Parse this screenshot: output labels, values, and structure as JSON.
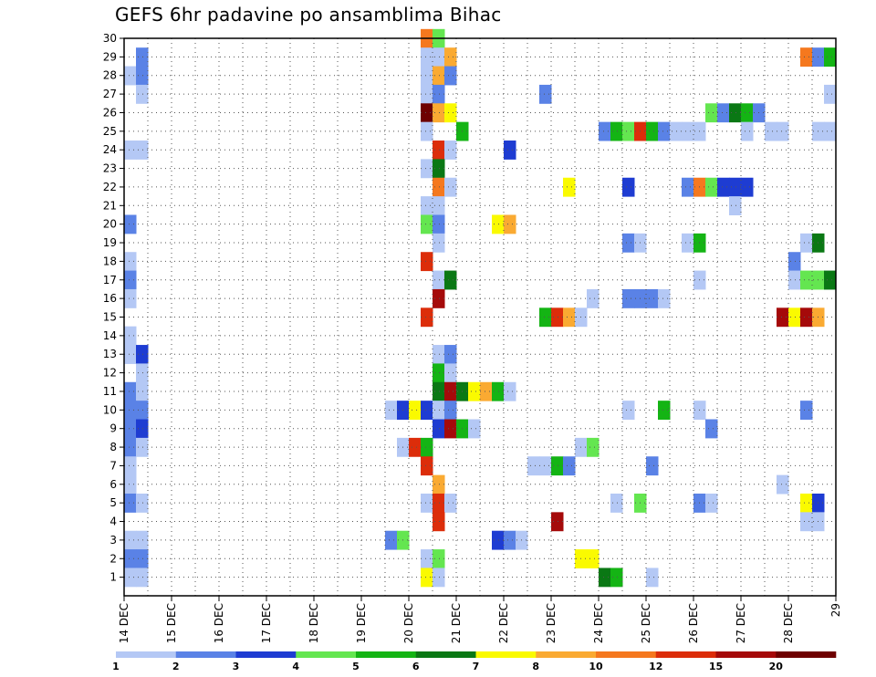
{
  "chart_data": {
    "type": "heatmap",
    "title": "GEFS 6hr padavine po ansamblima Bihac",
    "xlabel": "",
    "ylabel": "",
    "x_tick_labels": [
      "14 DEC",
      "15 DEC",
      "16 DEC",
      "17 DEC",
      "18 DEC",
      "19 DEC",
      "20 DEC",
      "21 DEC",
      "22 DEC",
      "23 DEC",
      "24 DEC",
      "25 DEC",
      "26 DEC",
      "27 DEC",
      "28 DEC",
      "29"
    ],
    "x_range_days": [
      14,
      29
    ],
    "y_tick_labels": [
      "1",
      "2",
      "3",
      "4",
      "5",
      "6",
      "7",
      "8",
      "9",
      "10",
      "11",
      "12",
      "13",
      "14",
      "15",
      "16",
      "17",
      "18",
      "19",
      "20",
      "21",
      "22",
      "23",
      "24",
      "25",
      "26",
      "27",
      "28",
      "29",
      "30"
    ],
    "y_range": [
      0,
      30
    ],
    "grid": true,
    "legend": "bottom",
    "colorbar": {
      "colors": [
        "#b4c8f5",
        "#5a82e6",
        "#1e3cd2",
        "#64e650",
        "#14b414",
        "#0a7814",
        "#fafa00",
        "#faaa32",
        "#f5781e",
        "#dc2d0a",
        "#a50a0a",
        "#6e0000"
      ],
      "labels": [
        "1",
        "2",
        "3",
        "4",
        "5",
        "6",
        "7",
        "8",
        "10",
        "12",
        "15",
        "20"
      ]
    },
    "cells": [
      {
        "m": 30,
        "d": 20.25,
        "c": 8
      },
      {
        "m": 30,
        "d": 20.5,
        "c": 3
      },
      {
        "m": 29,
        "d": 14.25,
        "c": 1
      },
      {
        "m": 29,
        "d": 20.25,
        "c": 0
      },
      {
        "m": 29,
        "d": 20.5,
        "c": 0
      },
      {
        "m": 29,
        "d": 20.75,
        "c": 7
      },
      {
        "m": 29,
        "d": 28.25,
        "c": 8
      },
      {
        "m": 29,
        "d": 28.5,
        "c": 1
      },
      {
        "m": 29,
        "d": 28.75,
        "c": 4
      },
      {
        "m": 28,
        "d": 14,
        "c": 0
      },
      {
        "m": 28,
        "d": 14.25,
        "c": 1
      },
      {
        "m": 28,
        "d": 20.25,
        "c": 0
      },
      {
        "m": 28,
        "d": 20.5,
        "c": 7
      },
      {
        "m": 28,
        "d": 20.75,
        "c": 1
      },
      {
        "m": 27,
        "d": 14.25,
        "c": 0
      },
      {
        "m": 27,
        "d": 20.25,
        "c": 0
      },
      {
        "m": 27,
        "d": 20.5,
        "c": 1
      },
      {
        "m": 27,
        "d": 22.75,
        "c": 1
      },
      {
        "m": 27,
        "d": 28.75,
        "c": 0
      },
      {
        "m": 26,
        "d": 20.25,
        "c": 11
      },
      {
        "m": 26,
        "d": 20.5,
        "c": 7
      },
      {
        "m": 26,
        "d": 20.75,
        "c": 6
      },
      {
        "m": 26,
        "d": 26.25,
        "c": 3
      },
      {
        "m": 26,
        "d": 26.5,
        "c": 1
      },
      {
        "m": 26,
        "d": 26.75,
        "c": 5
      },
      {
        "m": 26,
        "d": 27,
        "c": 4
      },
      {
        "m": 26,
        "d": 27.25,
        "c": 1
      },
      {
        "m": 25,
        "d": 20.25,
        "c": 0
      },
      {
        "m": 25,
        "d": 21,
        "c": 4
      },
      {
        "m": 25,
        "d": 24,
        "c": 1
      },
      {
        "m": 25,
        "d": 24.25,
        "c": 4
      },
      {
        "m": 25,
        "d": 24.5,
        "c": 3
      },
      {
        "m": 25,
        "d": 24.75,
        "c": 9
      },
      {
        "m": 25,
        "d": 25,
        "c": 4
      },
      {
        "m": 25,
        "d": 25.25,
        "c": 1
      },
      {
        "m": 25,
        "d": 25.5,
        "c": 0
      },
      {
        "m": 25,
        "d": 25.75,
        "c": 0
      },
      {
        "m": 25,
        "d": 26,
        "c": 0
      },
      {
        "m": 25,
        "d": 27,
        "c": 0
      },
      {
        "m": 25,
        "d": 27.5,
        "c": 0
      },
      {
        "m": 25,
        "d": 27.75,
        "c": 0
      },
      {
        "m": 25,
        "d": 28.5,
        "c": 0
      },
      {
        "m": 25,
        "d": 28.75,
        "c": 0
      },
      {
        "m": 24,
        "d": 14,
        "c": 0
      },
      {
        "m": 24,
        "d": 14.25,
        "c": 0
      },
      {
        "m": 24,
        "d": 20.5,
        "c": 9
      },
      {
        "m": 24,
        "d": 20.75,
        "c": 0
      },
      {
        "m": 24,
        "d": 22,
        "c": 2
      },
      {
        "m": 23,
        "d": 20.25,
        "c": 0
      },
      {
        "m": 23,
        "d": 20.5,
        "c": 5
      },
      {
        "m": 22,
        "d": 20.5,
        "c": 8
      },
      {
        "m": 22,
        "d": 20.75,
        "c": 0
      },
      {
        "m": 22,
        "d": 23.25,
        "c": 6
      },
      {
        "m": 22,
        "d": 24.5,
        "c": 2
      },
      {
        "m": 22,
        "d": 25.75,
        "c": 1
      },
      {
        "m": 22,
        "d": 26,
        "c": 8
      },
      {
        "m": 22,
        "d": 26.25,
        "c": 3
      },
      {
        "m": 22,
        "d": 26.5,
        "c": 2
      },
      {
        "m": 22,
        "d": 26.75,
        "c": 2
      },
      {
        "m": 22,
        "d": 27,
        "c": 2
      },
      {
        "m": 21,
        "d": 20.25,
        "c": 0
      },
      {
        "m": 21,
        "d": 20.5,
        "c": 0
      },
      {
        "m": 21,
        "d": 26.75,
        "c": 0
      },
      {
        "m": 20,
        "d": 14,
        "c": 1
      },
      {
        "m": 20,
        "d": 20.25,
        "c": 3
      },
      {
        "m": 20,
        "d": 20.5,
        "c": 1
      },
      {
        "m": 20,
        "d": 21.75,
        "c": 6
      },
      {
        "m": 20,
        "d": 22,
        "c": 7
      },
      {
        "m": 19,
        "d": 20.5,
        "c": 0
      },
      {
        "m": 19,
        "d": 24.5,
        "c": 1
      },
      {
        "m": 19,
        "d": 24.75,
        "c": 0
      },
      {
        "m": 19,
        "d": 25.75,
        "c": 0
      },
      {
        "m": 19,
        "d": 26,
        "c": 4
      },
      {
        "m": 19,
        "d": 28.25,
        "c": 0
      },
      {
        "m": 19,
        "d": 28.5,
        "c": 5
      },
      {
        "m": 18,
        "d": 14,
        "c": 0
      },
      {
        "m": 18,
        "d": 20.25,
        "c": 9
      },
      {
        "m": 18,
        "d": 28,
        "c": 1
      },
      {
        "m": 17,
        "d": 14,
        "c": 1
      },
      {
        "m": 17,
        "d": 20.5,
        "c": 0
      },
      {
        "m": 17,
        "d": 20.75,
        "c": 5
      },
      {
        "m": 17,
        "d": 26,
        "c": 0
      },
      {
        "m": 17,
        "d": 28,
        "c": 0
      },
      {
        "m": 17,
        "d": 28.25,
        "c": 3
      },
      {
        "m": 17,
        "d": 28.5,
        "c": 3
      },
      {
        "m": 17,
        "d": 28.75,
        "c": 5
      },
      {
        "m": 16,
        "d": 14,
        "c": 0
      },
      {
        "m": 16,
        "d": 20.5,
        "c": 10
      },
      {
        "m": 16,
        "d": 23.75,
        "c": 0
      },
      {
        "m": 16,
        "d": 24.5,
        "c": 1
      },
      {
        "m": 16,
        "d": 24.75,
        "c": 1
      },
      {
        "m": 16,
        "d": 25,
        "c": 1
      },
      {
        "m": 16,
        "d": 25.25,
        "c": 0
      },
      {
        "m": 15,
        "d": 20.25,
        "c": 9
      },
      {
        "m": 15,
        "d": 22.75,
        "c": 4
      },
      {
        "m": 15,
        "d": 23,
        "c": 9
      },
      {
        "m": 15,
        "d": 23.25,
        "c": 7
      },
      {
        "m": 15,
        "d": 23.5,
        "c": 0
      },
      {
        "m": 15,
        "d": 27.75,
        "c": 10
      },
      {
        "m": 15,
        "d": 28,
        "c": 6
      },
      {
        "m": 15,
        "d": 28.25,
        "c": 10
      },
      {
        "m": 15,
        "d": 28.5,
        "c": 7
      },
      {
        "m": 14,
        "d": 14,
        "c": 0
      },
      {
        "m": 13,
        "d": 14,
        "c": 0
      },
      {
        "m": 13,
        "d": 14.25,
        "c": 2
      },
      {
        "m": 13,
        "d": 20.5,
        "c": 0
      },
      {
        "m": 13,
        "d": 20.75,
        "c": 1
      },
      {
        "m": 12,
        "d": 14.25,
        "c": 0
      },
      {
        "m": 12,
        "d": 20.5,
        "c": 4
      },
      {
        "m": 12,
        "d": 20.75,
        "c": 0
      },
      {
        "m": 11,
        "d": 14,
        "c": 1
      },
      {
        "m": 11,
        "d": 14.25,
        "c": 0
      },
      {
        "m": 11,
        "d": 20.5,
        "c": 5
      },
      {
        "m": 11,
        "d": 20.75,
        "c": 10
      },
      {
        "m": 11,
        "d": 21,
        "c": 5
      },
      {
        "m": 11,
        "d": 21.25,
        "c": 6
      },
      {
        "m": 11,
        "d": 21.5,
        "c": 7
      },
      {
        "m": 11,
        "d": 21.75,
        "c": 4
      },
      {
        "m": 11,
        "d": 22,
        "c": 0
      },
      {
        "m": 10,
        "d": 14,
        "c": 1
      },
      {
        "m": 10,
        "d": 14.25,
        "c": 1
      },
      {
        "m": 10,
        "d": 19.5,
        "c": 0
      },
      {
        "m": 10,
        "d": 19.75,
        "c": 2
      },
      {
        "m": 10,
        "d": 20,
        "c": 6
      },
      {
        "m": 10,
        "d": 20.25,
        "c": 2
      },
      {
        "m": 10,
        "d": 20.5,
        "c": 0
      },
      {
        "m": 10,
        "d": 20.75,
        "c": 1
      },
      {
        "m": 10,
        "d": 24.5,
        "c": 0
      },
      {
        "m": 10,
        "d": 25.25,
        "c": 4
      },
      {
        "m": 10,
        "d": 26,
        "c": 0
      },
      {
        "m": 10,
        "d": 28.25,
        "c": 1
      },
      {
        "m": 9,
        "d": 14,
        "c": 1
      },
      {
        "m": 9,
        "d": 14.25,
        "c": 2
      },
      {
        "m": 9,
        "d": 20.5,
        "c": 2
      },
      {
        "m": 9,
        "d": 20.75,
        "c": 10
      },
      {
        "m": 9,
        "d": 21,
        "c": 4
      },
      {
        "m": 9,
        "d": 21.25,
        "c": 0
      },
      {
        "m": 9,
        "d": 26.25,
        "c": 1
      },
      {
        "m": 8,
        "d": 14,
        "c": 1
      },
      {
        "m": 8,
        "d": 14.25,
        "c": 0
      },
      {
        "m": 8,
        "d": 19.75,
        "c": 0
      },
      {
        "m": 8,
        "d": 20,
        "c": 9
      },
      {
        "m": 8,
        "d": 20.25,
        "c": 4
      },
      {
        "m": 8,
        "d": 23.5,
        "c": 0
      },
      {
        "m": 8,
        "d": 23.75,
        "c": 3
      },
      {
        "m": 7,
        "d": 14,
        "c": 0
      },
      {
        "m": 7,
        "d": 20.25,
        "c": 9
      },
      {
        "m": 7,
        "d": 22.5,
        "c": 0
      },
      {
        "m": 7,
        "d": 22.75,
        "c": 0
      },
      {
        "m": 7,
        "d": 23,
        "c": 4
      },
      {
        "m": 7,
        "d": 23.25,
        "c": 1
      },
      {
        "m": 7,
        "d": 25,
        "c": 1
      },
      {
        "m": 6,
        "d": 14,
        "c": 0
      },
      {
        "m": 6,
        "d": 20.5,
        "c": 7
      },
      {
        "m": 6,
        "d": 27.75,
        "c": 0
      },
      {
        "m": 5,
        "d": 14,
        "c": 1
      },
      {
        "m": 5,
        "d": 14.25,
        "c": 0
      },
      {
        "m": 5,
        "d": 20.25,
        "c": 0
      },
      {
        "m": 5,
        "d": 20.5,
        "c": 9
      },
      {
        "m": 5,
        "d": 20.75,
        "c": 0
      },
      {
        "m": 5,
        "d": 24.25,
        "c": 0
      },
      {
        "m": 5,
        "d": 24.75,
        "c": 3
      },
      {
        "m": 5,
        "d": 26,
        "c": 1
      },
      {
        "m": 5,
        "d": 26.25,
        "c": 0
      },
      {
        "m": 5,
        "d": 28.25,
        "c": 6
      },
      {
        "m": 5,
        "d": 28.5,
        "c": 2
      },
      {
        "m": 4,
        "d": 20.5,
        "c": 9
      },
      {
        "m": 4,
        "d": 23,
        "c": 10
      },
      {
        "m": 4,
        "d": 28.25,
        "c": 0
      },
      {
        "m": 4,
        "d": 28.5,
        "c": 0
      },
      {
        "m": 3,
        "d": 14,
        "c": 0
      },
      {
        "m": 3,
        "d": 14.25,
        "c": 0
      },
      {
        "m": 3,
        "d": 19.5,
        "c": 1
      },
      {
        "m": 3,
        "d": 19.75,
        "c": 3
      },
      {
        "m": 3,
        "d": 21.75,
        "c": 2
      },
      {
        "m": 3,
        "d": 22,
        "c": 1
      },
      {
        "m": 3,
        "d": 22.25,
        "c": 0
      },
      {
        "m": 2,
        "d": 14,
        "c": 1
      },
      {
        "m": 2,
        "d": 14.25,
        "c": 1
      },
      {
        "m": 2,
        "d": 20.25,
        "c": 0
      },
      {
        "m": 2,
        "d": 20.5,
        "c": 3
      },
      {
        "m": 2,
        "d": 23.5,
        "c": 6
      },
      {
        "m": 2,
        "d": 23.75,
        "c": 6
      },
      {
        "m": 1,
        "d": 14,
        "c": 0
      },
      {
        "m": 1,
        "d": 14.25,
        "c": 0
      },
      {
        "m": 1,
        "d": 20.25,
        "c": 6
      },
      {
        "m": 1,
        "d": 20.5,
        "c": 0
      },
      {
        "m": 1,
        "d": 24,
        "c": 5
      },
      {
        "m": 1,
        "d": 24.25,
        "c": 4
      },
      {
        "m": 1,
        "d": 25,
        "c": 0
      }
    ]
  }
}
